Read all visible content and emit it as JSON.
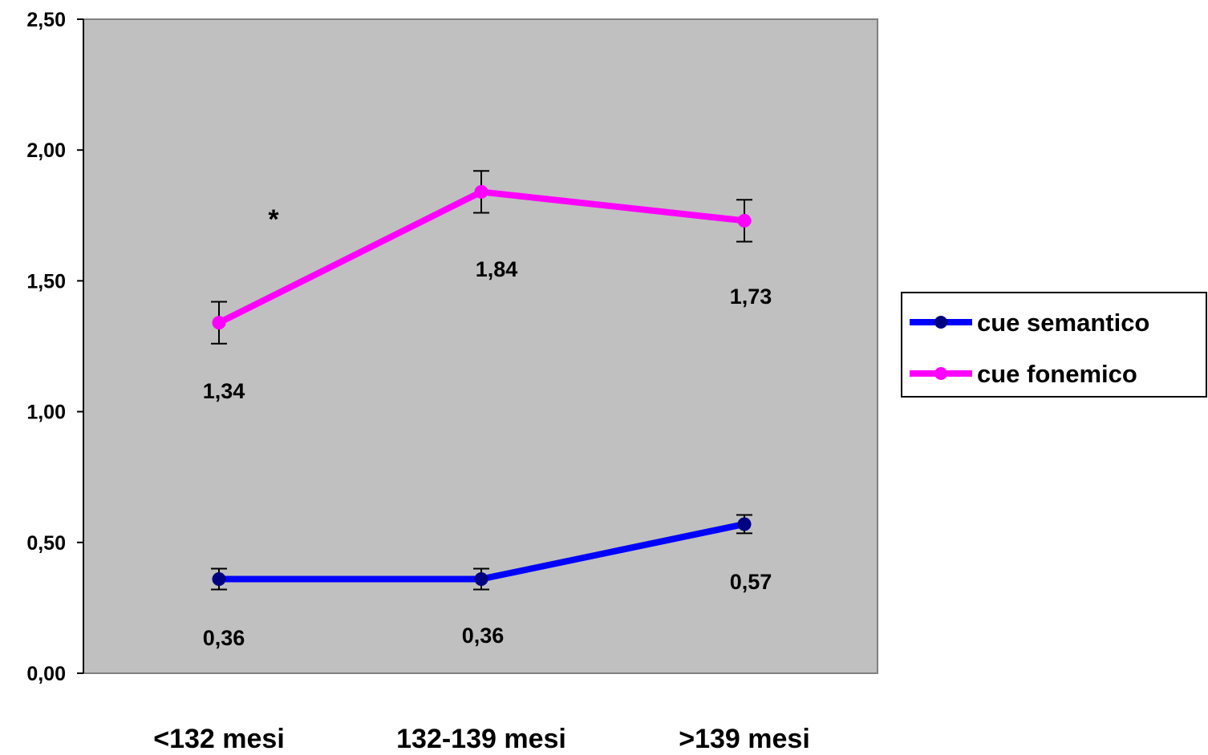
{
  "chart_data": {
    "type": "line",
    "categories": [
      "<132 mesi",
      "132-139 mesi",
      ">139 mesi"
    ],
    "ylim": [
      0,
      2.5
    ],
    "yticks": [
      0,
      0.5,
      1.0,
      1.5,
      2.0,
      2.5
    ],
    "ytick_labels": [
      "0,00",
      "0,50",
      "1,00",
      "1,50",
      "2,00",
      "2,50"
    ],
    "plot_background": "#c0c0c0",
    "grid": false,
    "legend_position": "right",
    "series": [
      {
        "name": "cue semantico",
        "color": "#0000ff",
        "marker_color": "#000080",
        "values": [
          0.36,
          0.36,
          0.57
        ],
        "error": [
          0.04,
          0.04,
          0.035
        ],
        "labels": [
          "0,36",
          "0,36",
          "0,57"
        ]
      },
      {
        "name": "cue fonemico",
        "color": "#ff00ff",
        "marker_color": "#ff00ff",
        "values": [
          1.34,
          1.84,
          1.73
        ],
        "error": [
          0.08,
          0.08,
          0.08
        ],
        "labels": [
          "1,34",
          "1,84",
          "1,73"
        ]
      }
    ],
    "annotations": [
      {
        "text": "*",
        "x_category_index": 0.2,
        "y": 1.74
      }
    ]
  }
}
